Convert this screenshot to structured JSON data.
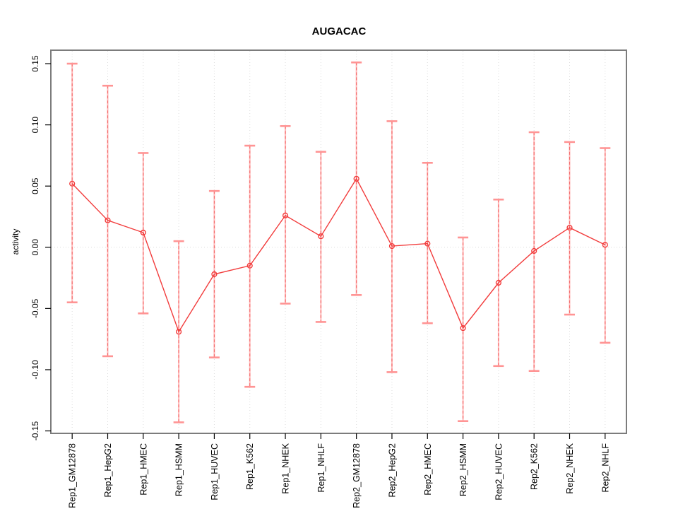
{
  "window": {
    "background": "#ffffff"
  },
  "chart_data": {
    "type": "line",
    "title": "AUGACAC",
    "xlabel": "",
    "ylabel": "activity",
    "categories": [
      "Rep1_GM12878",
      "Rep1_HepG2",
      "Rep1_HMEC",
      "Rep1_HSMM",
      "Rep1_HUVEC",
      "Rep1_K562",
      "Rep1_NHEK",
      "Rep1_NHLF",
      "Rep2_GM12878",
      "Rep2_HepG2",
      "Rep2_HMEC",
      "Rep2_HSMM",
      "Rep2_HUVEC",
      "Rep2_K562",
      "Rep2_NHEK",
      "Rep2_NHLF"
    ],
    "series": [
      {
        "name": "activity",
        "values": [
          0.052,
          0.022,
          0.012,
          -0.069,
          -0.022,
          -0.015,
          0.026,
          0.009,
          0.056,
          0.001,
          0.003,
          -0.066,
          -0.029,
          -0.003,
          0.016,
          0.002
        ],
        "upper": [
          0.15,
          0.132,
          0.077,
          0.005,
          0.046,
          0.083,
          0.099,
          0.078,
          0.151,
          0.103,
          0.069,
          0.008,
          0.039,
          0.094,
          0.086,
          0.081
        ],
        "lower": [
          -0.045,
          -0.089,
          -0.054,
          -0.143,
          -0.09,
          -0.114,
          -0.046,
          -0.061,
          -0.039,
          -0.102,
          -0.062,
          -0.142,
          -0.097,
          -0.101,
          -0.055,
          -0.078
        ]
      }
    ],
    "yticks": [
      -0.15,
      -0.1,
      -0.05,
      0.0,
      0.05,
      0.1,
      0.15
    ],
    "ytick_labels": [
      "-0.15",
      "-0.10",
      "-0.05",
      "0.00",
      "0.05",
      "0.10",
      "0.15"
    ],
    "ylim": [
      -0.152,
      0.161
    ],
    "xlim": [
      0.4,
      16.6
    ],
    "grid": "dotted vertical line per category and dotted horizontal line at zero",
    "legend": "none",
    "marker": "open-circle",
    "colors": {
      "series_line": "#f23c3c",
      "marker": "#f23c3c",
      "error_bar": "#ffb3b3",
      "error_bar_dash": "#f05050",
      "error_cap": "#ff9494",
      "gridline": "#dcdcdc",
      "frame": "#7c7c7c",
      "text": "#000000"
    }
  }
}
